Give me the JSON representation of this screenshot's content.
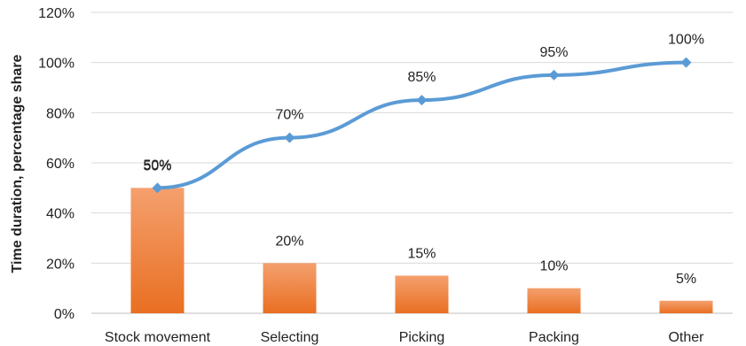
{
  "chart_data": {
    "type": "bar",
    "categories": [
      "Stock movement",
      "Selecting",
      "Picking",
      "Packing",
      "Other"
    ],
    "series": [
      {
        "type": "bar",
        "values": [
          50,
          20,
          15,
          10,
          5
        ],
        "value_labels": [
          "50%",
          "20%",
          "15%",
          "10%",
          "5%"
        ],
        "color": "#ED7D31"
      },
      {
        "type": "line",
        "values": [
          50,
          70,
          85,
          95,
          100
        ],
        "value_labels": [
          "50%",
          "70%",
          "85%",
          "95%",
          "100%"
        ],
        "color": "#5B9BD5",
        "marker": "diamond"
      }
    ],
    "ylabel": "Time duration, percentage share",
    "ylim": [
      0,
      120
    ],
    "yticks": [
      0,
      20,
      40,
      60,
      80,
      100,
      120
    ],
    "ytick_labels": [
      "0%",
      "20%",
      "40%",
      "60%",
      "80%",
      "100%",
      "120%"
    ],
    "grid": true,
    "legend": "none"
  }
}
